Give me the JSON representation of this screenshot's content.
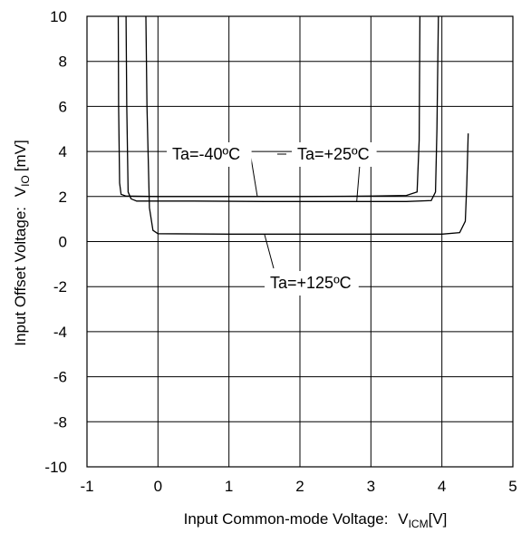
{
  "chart_data": {
    "type": "line",
    "xlabel": "Input Common-mode Voltage:",
    "xlabel_symbol": "V",
    "xlabel_subscript": "ICM",
    "xlabel_unit": "[V]",
    "ylabel": "Input Offset Voltage:",
    "ylabel_symbol": "V",
    "ylabel_subscript": "IO",
    "ylabel_unit": "[mV]",
    "xlim": [
      -1,
      5
    ],
    "ylim": [
      -10,
      10
    ],
    "xticks": [
      "-1",
      "0",
      "1",
      "2",
      "3",
      "4",
      "5"
    ],
    "yticks": [
      "10",
      "8",
      "6",
      "4",
      "2",
      "0",
      "-2",
      "-4",
      "-6",
      "-8",
      "-10"
    ],
    "grid": true,
    "line_color": "#000000",
    "series": [
      {
        "name": "Ta=-40ºC",
        "x": [
          -0.56,
          -0.555,
          -0.54,
          -0.52,
          -0.45,
          0.0,
          1.0,
          2.0,
          3.0,
          3.5,
          3.65,
          3.68,
          3.69
        ],
        "y": [
          10,
          6,
          2.6,
          2.1,
          2.02,
          2.0,
          2.0,
          2.0,
          2.02,
          2.05,
          2.2,
          4.5,
          10
        ]
      },
      {
        "name": "Ta=+25ºC",
        "x": [
          -0.45,
          -0.44,
          -0.42,
          -0.38,
          -0.3,
          0.5,
          1.5,
          2.5,
          3.5,
          3.85,
          3.91,
          3.93,
          3.95
        ],
        "y": [
          10,
          6,
          2.2,
          1.9,
          1.8,
          1.8,
          1.78,
          1.78,
          1.78,
          1.82,
          2.2,
          5.0,
          10
        ]
      },
      {
        "name": "Ta=+125ºC",
        "x": [
          -0.17,
          -0.155,
          -0.12,
          -0.07,
          0.0,
          1.0,
          2.0,
          3.0,
          4.0,
          4.25,
          4.33,
          4.35,
          4.37
        ],
        "y": [
          10,
          6,
          1.5,
          0.5,
          0.35,
          0.33,
          0.33,
          0.33,
          0.33,
          0.4,
          0.9,
          2.5,
          4.8
        ]
      }
    ],
    "annotations": [
      {
        "text": "Ta=-40ºC",
        "series": 0,
        "x": 1.4,
        "y": 2.0
      },
      {
        "text": "Ta=+25ºC",
        "series": 1,
        "x": 2.8,
        "y": 1.78
      },
      {
        "text": "Ta=+125ºC",
        "series": 2,
        "x": 1.5,
        "y": 0.33
      }
    ]
  }
}
